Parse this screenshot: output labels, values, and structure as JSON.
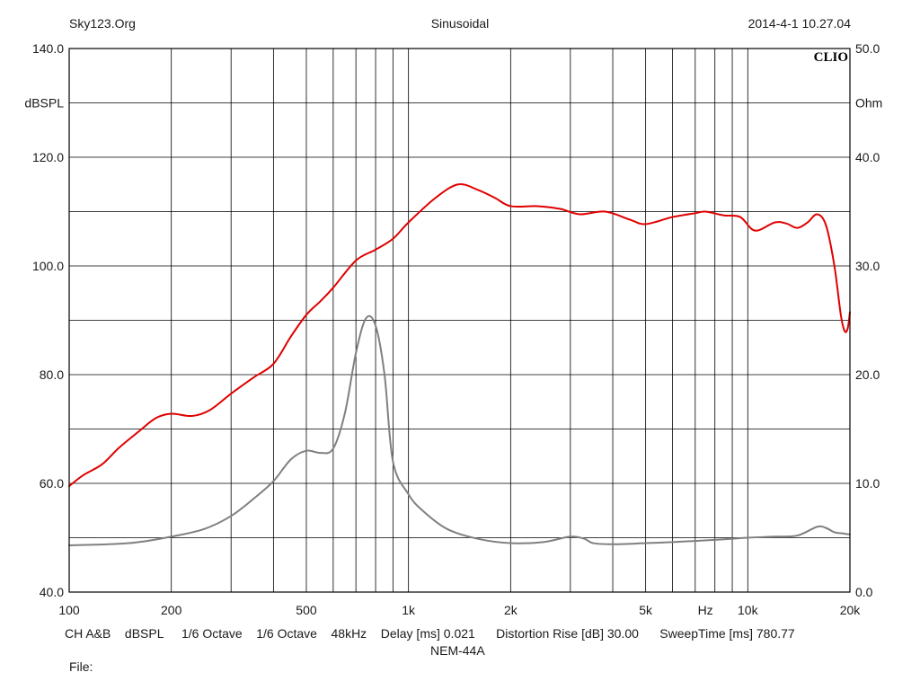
{
  "header": {
    "left": "Sky123.Org",
    "center": "Sinusoidal",
    "right": "2014-4-1 10.27.04"
  },
  "footer": {
    "settings": [
      "CH A&B",
      "dBSPL",
      "1/6 Octave",
      "1/6 Octave",
      "48kHz",
      "Delay [ms] 0.021",
      "Distortion Rise [dB] 30.00",
      "SweepTime [ms] 780.77"
    ],
    "model": "NEM-44A",
    "file_label": "File:"
  },
  "chart_data": {
    "type": "line",
    "brand_label": "CLIO",
    "x_scale": "log",
    "xlim": [
      100,
      20000
    ],
    "x_ticks": [
      {
        "value": 100,
        "label": "100"
      },
      {
        "value": 200,
        "label": "200"
      },
      {
        "value": 500,
        "label": "500"
      },
      {
        "value": 1000,
        "label": "1k"
      },
      {
        "value": 2000,
        "label": "2k"
      },
      {
        "value": 5000,
        "label": "5k"
      },
      {
        "value": 7500,
        "label": "Hz"
      },
      {
        "value": 10000,
        "label": "10k"
      },
      {
        "value": 20000,
        "label": "20k"
      }
    ],
    "y_left": {
      "unit": "dBSPL",
      "lim": [
        40,
        140
      ],
      "tick_labels": [
        "40.0",
        "60.0",
        "80.0",
        "100.0",
        "120.0",
        "140.0"
      ]
    },
    "y_right": {
      "unit": "Ohm",
      "lim": [
        0,
        50
      ],
      "tick_labels": [
        "0.0",
        "10.0",
        "20.0",
        "30.0",
        "40.0",
        "50.0"
      ]
    },
    "grid": true,
    "series": [
      {
        "color": "#e00000",
        "axis": "left",
        "points": [
          [
            100,
            59.5
          ],
          [
            110,
            61.5
          ],
          [
            125,
            63.5
          ],
          [
            140,
            66.5
          ],
          [
            160,
            69.5
          ],
          [
            180,
            72
          ],
          [
            200,
            72.8
          ],
          [
            230,
            72.4
          ],
          [
            260,
            73.5
          ],
          [
            300,
            76.5
          ],
          [
            350,
            79.5
          ],
          [
            400,
            82
          ],
          [
            450,
            87
          ],
          [
            500,
            91
          ],
          [
            550,
            93.5
          ],
          [
            600,
            96
          ],
          [
            700,
            101
          ],
          [
            800,
            103
          ],
          [
            900,
            105
          ],
          [
            1000,
            108
          ],
          [
            1200,
            112.5
          ],
          [
            1400,
            115
          ],
          [
            1600,
            114
          ],
          [
            1800,
            112.5
          ],
          [
            2000,
            111
          ],
          [
            2400,
            111
          ],
          [
            2800,
            110.5
          ],
          [
            3200,
            109.5
          ],
          [
            3800,
            110
          ],
          [
            4500,
            108.5
          ],
          [
            5000,
            107.7
          ],
          [
            6000,
            109
          ],
          [
            7000,
            109.7
          ],
          [
            7500,
            110
          ],
          [
            8500,
            109.3
          ],
          [
            9500,
            109
          ],
          [
            10500,
            106.5
          ],
          [
            12000,
            108
          ],
          [
            13000,
            107.8
          ],
          [
            14000,
            107
          ],
          [
            15000,
            108
          ],
          [
            16000,
            109.5
          ],
          [
            17000,
            107.5
          ],
          [
            18000,
            100
          ],
          [
            18800,
            91
          ],
          [
            19300,
            88
          ],
          [
            19700,
            88.5
          ],
          [
            20000,
            91.5
          ]
        ]
      },
      {
        "color": "#808080",
        "axis": "right",
        "points": [
          [
            100,
            4.3
          ],
          [
            150,
            4.5
          ],
          [
            200,
            5.1
          ],
          [
            250,
            5.8
          ],
          [
            300,
            7
          ],
          [
            350,
            8.6
          ],
          [
            400,
            10.2
          ],
          [
            450,
            12.2
          ],
          [
            500,
            13
          ],
          [
            550,
            12.8
          ],
          [
            600,
            13.2
          ],
          [
            650,
            16.5
          ],
          [
            700,
            22
          ],
          [
            750,
            25.2
          ],
          [
            800,
            24.5
          ],
          [
            850,
            20
          ],
          [
            900,
            12
          ],
          [
            1000,
            9
          ],
          [
            1100,
            7.5
          ],
          [
            1300,
            5.8
          ],
          [
            1600,
            4.9
          ],
          [
            2000,
            4.5
          ],
          [
            2500,
            4.6
          ],
          [
            3000,
            5.1
          ],
          [
            3300,
            4.9
          ],
          [
            3500,
            4.5
          ],
          [
            4000,
            4.4
          ],
          [
            5000,
            4.5
          ],
          [
            6000,
            4.6
          ],
          [
            8000,
            4.8
          ],
          [
            10000,
            5
          ],
          [
            12000,
            5.1
          ],
          [
            14000,
            5.2
          ],
          [
            16000,
            6
          ],
          [
            17000,
            5.9
          ],
          [
            18000,
            5.5
          ],
          [
            19000,
            5.4
          ],
          [
            20000,
            5.3
          ]
        ]
      }
    ]
  }
}
